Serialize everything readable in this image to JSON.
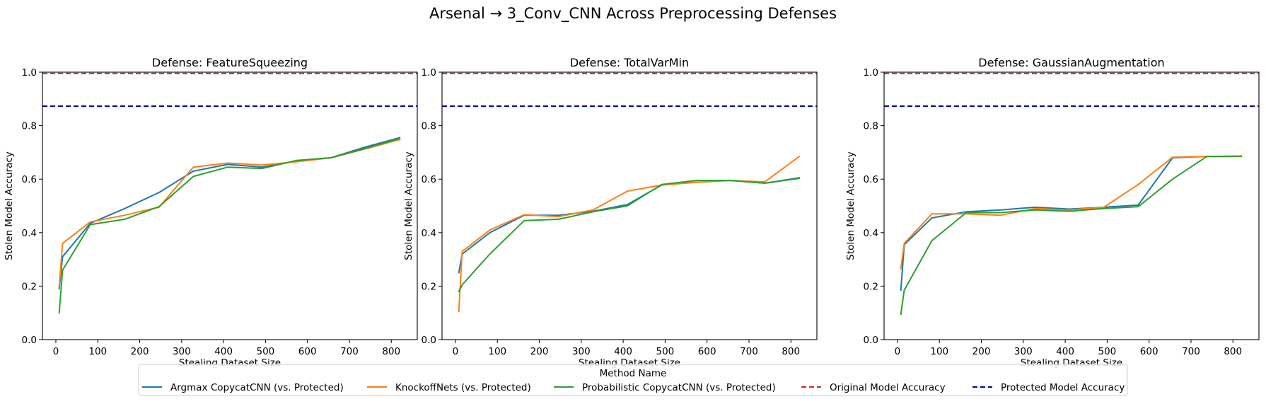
{
  "figure": {
    "title": "Arsenal → 3_Conv_CNN Across Preprocessing Defenses"
  },
  "legend": {
    "title": "Method Name",
    "placement": "bottom-center",
    "entries": [
      {
        "label": "Argmax CopycatCNN (vs. Protected)",
        "color": "#1f77b4",
        "style": "solid"
      },
      {
        "label": "KnockoffNets (vs. Protected)",
        "color": "#ff7f0e",
        "style": "solid"
      },
      {
        "label": "Probabilistic CopycatCNN (vs. Protected)",
        "color": "#2ca02c",
        "style": "solid"
      },
      {
        "label": "Original Model Accuracy",
        "color": "#d62728",
        "style": "dashed"
      },
      {
        "label": "Protected Model Accuracy",
        "color": "#0000b0",
        "style": "dashed"
      }
    ]
  },
  "chart_data": [
    {
      "type": "line",
      "title": "Defense: FeatureSqueezing",
      "xlabel": "Stealing Dataset Size",
      "ylabel": "Stolen Model Accuracy",
      "xlim": [
        -32,
        862
      ],
      "ylim": [
        0,
        1.0
      ],
      "xticks": [
        0,
        100,
        200,
        300,
        400,
        500,
        600,
        700,
        800
      ],
      "yticks": [
        0.0,
        0.2,
        0.4,
        0.6,
        0.8,
        1.0
      ],
      "grid": false,
      "hlines": [
        {
          "name": "Original Model Accuracy",
          "y": 0.995,
          "color": "#d62728"
        },
        {
          "name": "Protected Model Accuracy",
          "y": 0.873,
          "color": "#0000b0"
        }
      ],
      "series": [
        {
          "name": "Argmax CopycatCNN (vs. Protected)",
          "color": "#1f77b4",
          "x": [
            8,
            16,
            82,
            164,
            246,
            328,
            410,
            492,
            574,
            656,
            738,
            820
          ],
          "y": [
            0.19,
            0.31,
            0.435,
            0.49,
            0.55,
            0.63,
            0.655,
            0.645,
            0.668,
            0.68,
            0.72,
            0.755
          ]
        },
        {
          "name": "KnockoffNets (vs. Protected)",
          "color": "#ff7f0e",
          "x": [
            8,
            16,
            82,
            164,
            246,
            328,
            410,
            492,
            574,
            656,
            738,
            820
          ],
          "y": [
            0.2,
            0.36,
            0.44,
            0.465,
            0.495,
            0.645,
            0.66,
            0.653,
            0.665,
            0.68,
            0.713,
            0.748
          ]
        },
        {
          "name": "Probabilistic CopycatCNN (vs. Protected)",
          "color": "#2ca02c",
          "x": [
            8,
            16,
            82,
            164,
            246,
            328,
            410,
            492,
            574,
            656,
            738,
            820
          ],
          "y": [
            0.1,
            0.26,
            0.43,
            0.45,
            0.497,
            0.61,
            0.645,
            0.64,
            0.67,
            0.68,
            0.715,
            0.752
          ]
        }
      ]
    },
    {
      "type": "line",
      "title": "Defense: TotalVarMin",
      "xlabel": "Stealing Dataset Size",
      "ylabel": "Stolen Model Accuracy",
      "xlim": [
        -32,
        862
      ],
      "ylim": [
        0,
        1.0
      ],
      "xticks": [
        0,
        100,
        200,
        300,
        400,
        500,
        600,
        700,
        800
      ],
      "yticks": [
        0.0,
        0.2,
        0.4,
        0.6,
        0.8,
        1.0
      ],
      "grid": false,
      "hlines": [
        {
          "name": "Original Model Accuracy",
          "y": 0.995,
          "color": "#d62728"
        },
        {
          "name": "Protected Model Accuracy",
          "y": 0.873,
          "color": "#0000b0"
        }
      ],
      "series": [
        {
          "name": "Argmax CopycatCNN (vs. Protected)",
          "color": "#1f77b4",
          "x": [
            8,
            16,
            82,
            164,
            246,
            328,
            410,
            492,
            574,
            656,
            738,
            820
          ],
          "y": [
            0.25,
            0.32,
            0.4,
            0.465,
            0.465,
            0.48,
            0.505,
            0.578,
            0.595,
            0.595,
            0.585,
            0.605
          ]
        },
        {
          "name": "KnockoffNets (vs. Protected)",
          "color": "#ff7f0e",
          "x": [
            8,
            16,
            82,
            164,
            246,
            328,
            410,
            492,
            574,
            656,
            738,
            820
          ],
          "y": [
            0.105,
            0.33,
            0.41,
            0.467,
            0.46,
            0.485,
            0.555,
            0.578,
            0.588,
            0.595,
            0.59,
            0.685
          ]
        },
        {
          "name": "Probabilistic CopycatCNN (vs. Protected)",
          "color": "#2ca02c",
          "x": [
            8,
            16,
            82,
            164,
            246,
            328,
            410,
            492,
            574,
            656,
            738,
            820
          ],
          "y": [
            0.18,
            0.205,
            0.32,
            0.445,
            0.45,
            0.478,
            0.5,
            0.58,
            0.595,
            0.595,
            0.585,
            0.603
          ]
        }
      ]
    },
    {
      "type": "line",
      "title": "Defense: GaussianAugmentation",
      "xlabel": "Stealing Dataset Size",
      "ylabel": "Stolen Model Accuracy",
      "xlim": [
        -32,
        862
      ],
      "ylim": [
        0,
        1.0
      ],
      "xticks": [
        0,
        100,
        200,
        300,
        400,
        500,
        600,
        700,
        800
      ],
      "yticks": [
        0.0,
        0.2,
        0.4,
        0.6,
        0.8,
        1.0
      ],
      "grid": false,
      "hlines": [
        {
          "name": "Original Model Accuracy",
          "y": 0.995,
          "color": "#d62728"
        },
        {
          "name": "Protected Model Accuracy",
          "y": 0.873,
          "color": "#0000b0"
        }
      ],
      "series": [
        {
          "name": "Argmax CopycatCNN (vs. Protected)",
          "color": "#1f77b4",
          "x": [
            8,
            16,
            82,
            164,
            246,
            328,
            410,
            492,
            574,
            656,
            738,
            820
          ],
          "y": [
            0.185,
            0.355,
            0.455,
            0.478,
            0.485,
            0.495,
            0.488,
            0.495,
            0.503,
            0.68,
            0.685,
            0.686
          ]
        },
        {
          "name": "KnockoffNets (vs. Protected)",
          "color": "#ff7f0e",
          "x": [
            8,
            16,
            82,
            164,
            246,
            328,
            410,
            492,
            574,
            656,
            738,
            820
          ],
          "y": [
            0.265,
            0.36,
            0.47,
            0.47,
            0.465,
            0.49,
            0.485,
            0.495,
            0.58,
            0.682,
            0.685,
            0.685
          ]
        },
        {
          "name": "Probabilistic CopycatCNN (vs. Protected)",
          "color": "#2ca02c",
          "x": [
            8,
            16,
            82,
            164,
            246,
            328,
            410,
            492,
            574,
            656,
            738,
            820
          ],
          "y": [
            0.095,
            0.185,
            0.37,
            0.475,
            0.475,
            0.485,
            0.48,
            0.49,
            0.497,
            0.6,
            0.685,
            0.686
          ]
        }
      ]
    }
  ]
}
